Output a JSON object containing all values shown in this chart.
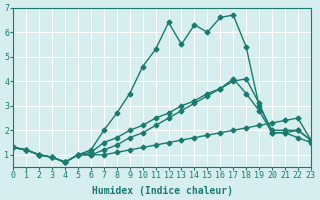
{
  "xlabel": "Humidex (Indice chaleur)",
  "ylabel": "",
  "background_color": "#d6eeee",
  "grid_color": "#ffffff",
  "line_color": "#1a7a6e",
  "xlim": [
    0,
    23
  ],
  "ylim": [
    0.5,
    7
  ],
  "yticks": [
    1,
    2,
    3,
    4,
    5,
    6,
    7
  ],
  "xticks": [
    0,
    1,
    2,
    3,
    4,
    5,
    6,
    7,
    8,
    9,
    10,
    11,
    12,
    13,
    14,
    15,
    16,
    17,
    18,
    19,
    20,
    21,
    22,
    23
  ],
  "lines": [
    {
      "x": [
        0,
        1,
        2,
        3,
        4,
        5,
        6,
        7,
        8,
        9,
        10,
        11,
        12,
        13,
        14,
        15,
        16,
        17,
        18,
        19,
        20,
        21,
        22,
        23
      ],
      "y": [
        1.3,
        1.2,
        1.0,
        0.9,
        0.7,
        1.0,
        1.0,
        1.0,
        1.1,
        1.2,
        1.3,
        1.4,
        1.5,
        1.6,
        1.7,
        1.8,
        1.9,
        2.0,
        2.1,
        2.2,
        2.3,
        2.4,
        2.5,
        1.6
      ]
    },
    {
      "x": [
        0,
        1,
        2,
        3,
        4,
        5,
        6,
        7,
        8,
        9,
        10,
        11,
        12,
        13,
        14,
        15,
        16,
        17,
        18,
        19,
        20,
        21,
        22,
        23
      ],
      "y": [
        1.3,
        1.2,
        1.0,
        0.9,
        0.7,
        1.0,
        1.1,
        1.5,
        1.7,
        2.0,
        2.2,
        2.5,
        2.7,
        3.0,
        3.2,
        3.5,
        3.7,
        4.0,
        4.1,
        3.1,
        1.9,
        1.9,
        2.0,
        1.6
      ]
    },
    {
      "x": [
        0,
        1,
        2,
        3,
        4,
        5,
        6,
        7,
        8,
        9,
        10,
        11,
        12,
        13,
        14,
        15,
        16,
        17,
        18,
        19,
        20,
        21,
        22,
        23
      ],
      "y": [
        1.3,
        1.2,
        1.0,
        0.9,
        0.7,
        1.0,
        1.2,
        2.0,
        2.7,
        3.5,
        4.6,
        5.3,
        6.4,
        5.5,
        6.3,
        6.0,
        6.6,
        6.7,
        5.4,
        3.0,
        2.0,
        2.0,
        2.0,
        1.6
      ]
    },
    {
      "x": [
        0,
        1,
        2,
        3,
        4,
        5,
        6,
        7,
        8,
        9,
        10,
        11,
        12,
        13,
        14,
        15,
        16,
        17,
        18,
        19,
        20,
        21,
        22,
        23
      ],
      "y": [
        1.3,
        1.2,
        1.0,
        0.9,
        0.7,
        1.0,
        1.0,
        1.2,
        1.4,
        1.7,
        1.9,
        2.2,
        2.5,
        2.8,
        3.1,
        3.4,
        3.7,
        4.1,
        3.5,
        2.8,
        1.9,
        1.9,
        1.7,
        1.5
      ]
    }
  ]
}
